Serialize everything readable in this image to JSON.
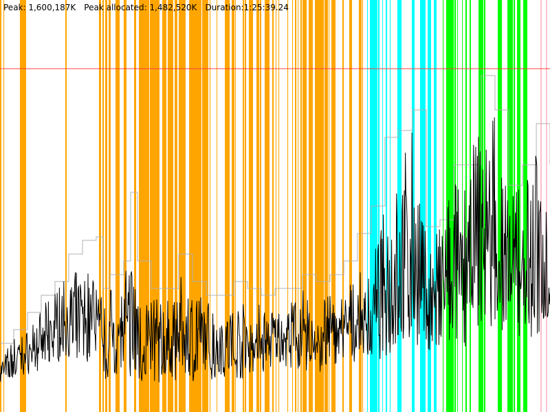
{
  "header": {
    "peak": "Peak: 1,600,187K",
    "peak_allocated": "Peak allocated: 1,482,520K",
    "duration": "Duration:1:25:39.24"
  },
  "chart_data": {
    "type": "line",
    "title": "",
    "xlabel": "",
    "ylabel": "",
    "x_unit": "seconds",
    "y_unit": "K",
    "xlim": [
      0,
      5139
    ],
    "ylim": [
      0,
      1920000
    ],
    "grid": false,
    "peak_line": {
      "value": 1600187,
      "color": "#FF4040"
    },
    "band_colors": {
      "orange": "#FFA500",
      "cyan": "#00FFFF",
      "green": "#00FF00",
      "pink": "#FFC0CB"
    },
    "bands": {
      "orange": [
        [
          0,
          13
        ],
        [
          32,
          39
        ],
        [
          186,
          244
        ],
        [
          610,
          623
        ],
        [
          925,
          944
        ],
        [
          957,
          970
        ],
        [
          983,
          1002
        ],
        [
          1015,
          1034
        ],
        [
          1079,
          1118
        ],
        [
          1156,
          1182
        ],
        [
          1253,
          1272
        ],
        [
          1298,
          1394
        ],
        [
          1400,
          1490
        ],
        [
          1516,
          1555
        ],
        [
          1567,
          1619
        ],
        [
          1632,
          1657
        ],
        [
          1670,
          1734
        ],
        [
          1767,
          1882
        ],
        [
          1889,
          1946
        ],
        [
          1959,
          1966
        ],
        [
          2024,
          2030
        ],
        [
          2101,
          2146
        ],
        [
          2165,
          2191
        ],
        [
          2197,
          2203
        ],
        [
          2268,
          2281
        ],
        [
          2287,
          2300
        ],
        [
          2325,
          2364
        ],
        [
          2396,
          2422
        ],
        [
          2428,
          2441
        ],
        [
          2473,
          2518
        ],
        [
          2544,
          2557
        ],
        [
          2576,
          2582
        ],
        [
          2602,
          2608
        ],
        [
          2685,
          2692
        ],
        [
          2730,
          2737
        ],
        [
          2756,
          2769
        ],
        [
          2782,
          2788
        ],
        [
          2807,
          2820
        ],
        [
          2827,
          2865
        ],
        [
          2884,
          2923
        ],
        [
          2942,
          3026
        ],
        [
          3032,
          3064
        ],
        [
          3071,
          3077
        ],
        [
          3096,
          3135
        ],
        [
          3199,
          3212
        ],
        [
          3263,
          3289
        ],
        [
          3353,
          3379
        ],
        [
          3385,
          3392
        ]
      ],
      "cyan": [
        [
          3430,
          3437
        ],
        [
          3456,
          3527
        ],
        [
          3533,
          3546
        ],
        [
          3572,
          3578
        ],
        [
          3604,
          3617
        ],
        [
          3642,
          3649
        ],
        [
          3713,
          3752
        ],
        [
          3848,
          3874
        ],
        [
          3925,
          3976
        ],
        [
          3996,
          4028
        ],
        [
          4054,
          4079
        ]
      ],
      "green": [
        [
          4137,
          4144
        ],
        [
          4169,
          4240
        ],
        [
          4246,
          4259
        ],
        [
          4272,
          4278
        ],
        [
          4317,
          4323
        ],
        [
          4349,
          4362
        ],
        [
          4388,
          4400
        ],
        [
          4471,
          4516
        ],
        [
          4522,
          4535
        ],
        [
          4651,
          4690
        ],
        [
          4741,
          4792
        ],
        [
          4799,
          4812
        ],
        [
          4831,
          4863
        ],
        [
          4889,
          4927
        ]
      ],
      "pink": [
        [
          5049,
          5062
        ],
        [
          5101,
          5113
        ]
      ]
    },
    "series": [
      {
        "color": "#000000",
        "x": [
          0,
          128,
          257,
          385,
          514,
          642,
          771,
          899,
          964,
          1028,
          1156,
          1221,
          1285,
          1413,
          1542,
          1670,
          1799,
          1927,
          2056,
          2184,
          2313,
          2441,
          2570,
          2698,
          2827,
          2955,
          3083,
          3212,
          3340,
          3469,
          3597,
          3726,
          3854,
          3983,
          4111,
          4240,
          4368,
          4497,
          4625,
          4754,
          4882,
          5011,
          5139
        ],
        "min": [
          128000,
          144000,
          176000,
          192000,
          224000,
          256000,
          224000,
          240000,
          144000,
          160000,
          176000,
          160000,
          128000,
          144000,
          128000,
          144000,
          144000,
          144000,
          160000,
          160000,
          144000,
          176000,
          208000,
          208000,
          192000,
          176000,
          192000,
          224000,
          224000,
          224000,
          256000,
          288000,
          320000,
          288000,
          256000,
          320000,
          288000,
          352000,
          416000,
          320000,
          352000,
          320000,
          448000
        ],
        "max": [
          256000,
          352000,
          384000,
          480000,
          576000,
          640000,
          672000,
          704000,
          512000,
          576000,
          640000,
          736000,
          640000,
          544000,
          512000,
          640000,
          576000,
          544000,
          480000,
          512000,
          512000,
          512000,
          496000,
          528000,
          576000,
          544000,
          544000,
          576000,
          640000,
          704000,
          960000,
          1088000,
          1408000,
          800000,
          864000,
          1120000,
          1120000,
          1440000,
          1408000,
          1024000,
          1120000,
          1216000,
          960000
        ]
      },
      {
        "color": "#B0B0B0",
        "x": [
          0,
          128,
          257,
          385,
          514,
          642,
          771,
          899,
          964,
          1028,
          1156,
          1221,
          1285,
          1413,
          1542,
          1670,
          1799,
          1927,
          2056,
          2184,
          2313,
          2441,
          2570,
          2698,
          2827,
          2955,
          3083,
          3212,
          3340,
          3469,
          3597,
          3726,
          3854,
          3983,
          4111,
          4240,
          4368,
          4497,
          4625,
          4754,
          4882,
          5011,
          5139
        ],
        "values": [
          320000,
          384000,
          464000,
          544000,
          608000,
          736000,
          800000,
          816000,
          576000,
          640000,
          704000,
          1024000,
          704000,
          576000,
          576000,
          736000,
          608000,
          544000,
          544000,
          608000,
          576000,
          544000,
          576000,
          576000,
          640000,
          608000,
          640000,
          704000,
          832000,
          960000,
          1280000,
          1312000,
          1408000,
          864000,
          896000,
          1152000,
          1152000,
          1568000,
          1408000,
          1056000,
          1152000,
          1344000,
          1152000
        ]
      }
    ]
  }
}
